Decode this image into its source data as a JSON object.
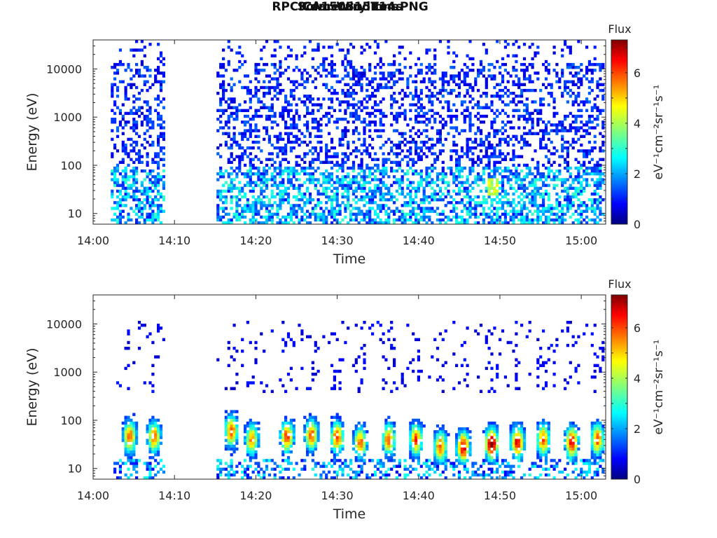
{
  "figure": {
    "filename": "RPCICA150815T14.PNG"
  },
  "chart_data": [
    {
      "type": "heatmap",
      "title": "Solar Wind Ions",
      "xlabel": "Time",
      "ylabel": "Energy (eV)",
      "x_ticks": [
        "14:00",
        "14:10",
        "14:20",
        "14:30",
        "14:40",
        "14:50",
        "15:00"
      ],
      "xlim": [
        "14:00",
        "15:03"
      ],
      "y_scale": "log",
      "y_ticks": [
        10,
        100,
        1000,
        10000
      ],
      "y_tick_labels": [
        "10",
        "100",
        "1000",
        "10000"
      ],
      "ylim": [
        6,
        40000
      ],
      "colorbar": {
        "label": "Flux",
        "unit": "eV⁻¹cm⁻²sr⁻¹s⁻¹",
        "range": [
          0,
          7.3
        ],
        "ticks": [
          "0",
          "2",
          "4",
          "6"
        ],
        "colormap": "jet"
      },
      "data_gaps": [
        [
          "14:08:30",
          "14:15:00"
        ]
      ],
      "data_start": "14:02:10",
      "data_end": "15:02:40",
      "description_values": {
        "noise_floor_level": 1,
        "low_energy_band_eV": [
          10,
          100
        ],
        "low_energy_band_level": 2.5,
        "peak_level": 4.5,
        "peak_time": "14:49"
      }
    },
    {
      "type": "heatmap",
      "title": "Cometary Ions",
      "xlabel": "Time",
      "ylabel": "Energy (eV)",
      "x_ticks": [
        "14:00",
        "14:10",
        "14:20",
        "14:30",
        "14:40",
        "14:50",
        "15:00"
      ],
      "xlim": [
        "14:00",
        "15:03"
      ],
      "y_scale": "log",
      "y_ticks": [
        10,
        100,
        1000,
        10000
      ],
      "y_tick_labels": [
        "10",
        "100",
        "1000",
        "10000"
      ],
      "ylim": [
        6,
        40000
      ],
      "colorbar": {
        "label": "Flux",
        "unit": "eV⁻¹cm⁻²sr⁻¹s⁻¹",
        "range": [
          0,
          7.3
        ],
        "ticks": [
          "0",
          "2",
          "4",
          "6"
        ],
        "colormap": "jet"
      },
      "data_gaps": [
        [
          "14:08:30",
          "14:15:00"
        ]
      ],
      "data_start": "14:02:10",
      "data_end": "15:02:40",
      "bursts": [
        {
          "time": "14:04:20",
          "peak_energy_eV": 45,
          "peak_level": 5.5
        },
        {
          "time": "14:07:20",
          "peak_energy_eV": 45,
          "peak_level": 5.2
        },
        {
          "time": "14:16:50",
          "peak_energy_eV": 60,
          "peak_level": 5.5
        },
        {
          "time": "14:19:20",
          "peak_energy_eV": 40,
          "peak_level": 5.0
        },
        {
          "time": "14:23:40",
          "peak_energy_eV": 45,
          "peak_level": 5.6
        },
        {
          "time": "14:26:40",
          "peak_energy_eV": 50,
          "peak_level": 5.4
        },
        {
          "time": "14:29:50",
          "peak_energy_eV": 45,
          "peak_level": 5.6
        },
        {
          "time": "14:32:40",
          "peak_energy_eV": 35,
          "peak_level": 5.2
        },
        {
          "time": "14:36:10",
          "peak_energy_eV": 40,
          "peak_level": 5.4
        },
        {
          "time": "14:39:30",
          "peak_energy_eV": 40,
          "peak_level": 5.6
        },
        {
          "time": "14:42:30",
          "peak_energy_eV": 28,
          "peak_level": 5.4
        },
        {
          "time": "14:45:20",
          "peak_energy_eV": 28,
          "peak_level": 6.2
        },
        {
          "time": "14:48:50",
          "peak_energy_eV": 32,
          "peak_level": 7.0
        },
        {
          "time": "14:52:00",
          "peak_energy_eV": 35,
          "peak_level": 6.2
        },
        {
          "time": "14:55:10",
          "peak_energy_eV": 40,
          "peak_level": 5.4
        },
        {
          "time": "14:58:40",
          "peak_energy_eV": 35,
          "peak_level": 6.2
        },
        {
          "time": "15:01:50",
          "peak_energy_eV": 40,
          "peak_level": 5.4
        }
      ]
    }
  ]
}
